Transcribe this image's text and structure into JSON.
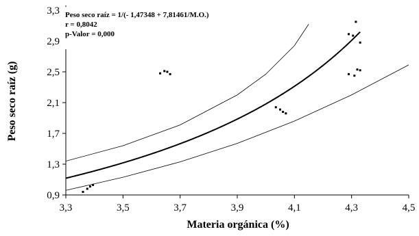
{
  "chart_data": {
    "type": "scatter",
    "title": "",
    "xlabel": "Materia orgánica (%)",
    "ylabel": "Peso seco raíz (g)",
    "xlim": [
      3.3,
      4.5
    ],
    "ylim": [
      0.9,
      3.3
    ],
    "x_ticks": [
      3.3,
      3.5,
      3.7,
      3.9,
      4.1,
      4.3,
      4.5
    ],
    "x_tick_labels": [
      "3,3",
      "3,5",
      "3,7",
      "3,9",
      "4,1",
      "4,3",
      "4,5"
    ],
    "y_ticks": [
      0.9,
      1.3,
      1.7,
      2.1,
      2.5,
      2.9,
      3.3
    ],
    "y_tick_labels": [
      "0,9",
      "1,3",
      "1,7",
      "2,1",
      "2,5",
      "2,9",
      "3,3"
    ],
    "grid": false,
    "annotations": [
      "Peso seco raíz = 1/(- 1,47348 + 7,81461/M.O.)",
      "r = 0,8042",
      "p-Valor = 0,000"
    ],
    "fit": {
      "a": -1.47348,
      "b": 7.81461,
      "x_range": [
        3.3,
        4.33
      ]
    },
    "upper_band": {
      "x": [
        3.3,
        3.5,
        3.7,
        3.9,
        4.0,
        4.1,
        4.15
      ],
      "y": [
        1.34,
        1.54,
        1.81,
        2.2,
        2.47,
        2.84,
        3.12
      ]
    },
    "lower_band": {
      "x": [
        3.3,
        3.5,
        3.7,
        3.9,
        4.1,
        4.3,
        4.5
      ],
      "y": [
        0.96,
        1.13,
        1.33,
        1.57,
        1.86,
        2.2,
        2.59
      ]
    },
    "points": [
      {
        "x": 3.36,
        "y": 0.94
      },
      {
        "x": 3.375,
        "y": 0.98
      },
      {
        "x": 3.385,
        "y": 1.01
      },
      {
        "x": 3.395,
        "y": 1.03
      },
      {
        "x": 3.63,
        "y": 2.48
      },
      {
        "x": 3.645,
        "y": 2.51
      },
      {
        "x": 3.655,
        "y": 2.5
      },
      {
        "x": 3.665,
        "y": 2.47
      },
      {
        "x": 4.035,
        "y": 2.04
      },
      {
        "x": 4.05,
        "y": 2.01
      },
      {
        "x": 4.06,
        "y": 1.98
      },
      {
        "x": 4.07,
        "y": 1.96
      },
      {
        "x": 4.29,
        "y": 2.99
      },
      {
        "x": 4.305,
        "y": 2.97
      },
      {
        "x": 4.315,
        "y": 3.15
      },
      {
        "x": 4.33,
        "y": 2.88
      },
      {
        "x": 4.29,
        "y": 2.47
      },
      {
        "x": 4.31,
        "y": 2.45
      },
      {
        "x": 4.32,
        "y": 2.53
      },
      {
        "x": 4.33,
        "y": 2.52
      }
    ]
  }
}
